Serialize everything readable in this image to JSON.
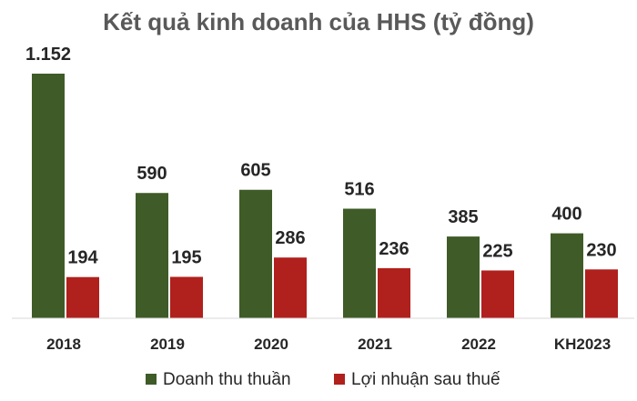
{
  "chart_data": {
    "type": "bar",
    "title": "Kết quả kinh doanh của HHS (tỷ đồng)",
    "categories": [
      "2018",
      "2019",
      "2020",
      "2021",
      "2022",
      "KH2023"
    ],
    "series": [
      {
        "name": "Doanh thu thuần",
        "values": [
          1152,
          590,
          605,
          516,
          385,
          400
        ],
        "labels": [
          "1.152",
          "590",
          "605",
          "516",
          "385",
          "400"
        ],
        "color": "#3f5b28"
      },
      {
        "name": "Lợi nhuận sau thuế",
        "values": [
          194,
          195,
          286,
          236,
          225,
          230
        ],
        "labels": [
          "194",
          "195",
          "286",
          "236",
          "225",
          "230"
        ],
        "color": "#b0201c"
      }
    ],
    "xlabel": "",
    "ylabel": "",
    "ylim": [
      0,
      1152
    ],
    "grid": false,
    "legend_position": "bottom"
  }
}
